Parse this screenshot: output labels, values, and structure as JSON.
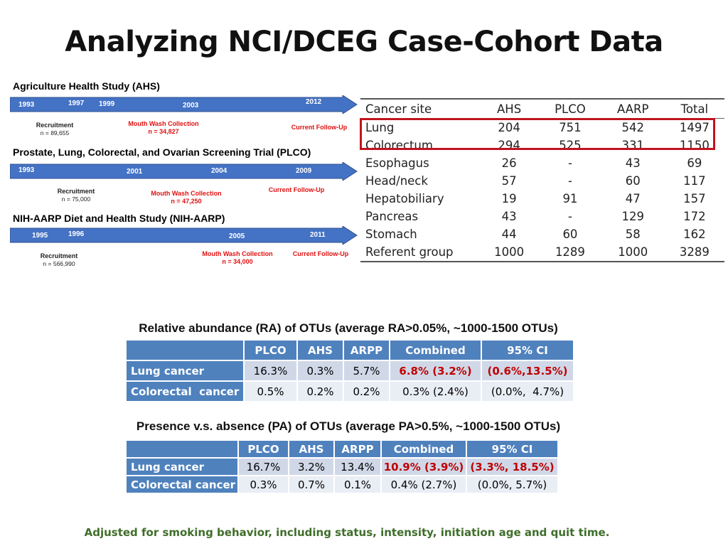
{
  "title": "Analyzing NCI/DCEG Case-Cohort Data",
  "colors": {
    "arrow_blue": "#4472c4",
    "table_header_blue": "#4f81bd",
    "highlight_red": "#c0141e",
    "footnote_green": "#3f6e2a"
  },
  "timelines": [
    {
      "name": "Agriculture Health Study (AHS)",
      "years": [
        "1993",
        "1997",
        "1999",
        "2003",
        "2012"
      ],
      "recruitment_label": "Recruitment",
      "recruitment_n": "n = 89,655",
      "mouthwash_label": "Mouth Wash Collection",
      "mouthwash_n": "n = 34,827",
      "followup_label": "Current Follow-Up"
    },
    {
      "name": "Prostate, Lung, Colorectal, and Ovarian Screening Trial (PLCO)",
      "years": [
        "1993",
        "2001",
        "2004",
        "2009"
      ],
      "recruitment_label": "Recruitment",
      "recruitment_n": "n = 75,000",
      "mouthwash_label": "Mouth Wash Collection",
      "mouthwash_n": "n = 47,250",
      "followup_label": "Current Follow-Up"
    },
    {
      "name": "NIH-AARP Diet and Health Study (NIH-AARP)",
      "years": [
        "1995",
        "1996",
        "2005",
        "2011"
      ],
      "recruitment_label": "Recruitment",
      "recruitment_n": "n = 566,990",
      "mouthwash_label": "Mouth Wash Collection",
      "mouthwash_n": "n = 34,000",
      "followup_label": "Current Follow-Up"
    }
  ],
  "cohort_table": {
    "headers": [
      "Cancer site",
      "AHS",
      "PLCO",
      "AARP",
      "Total"
    ],
    "rows": [
      [
        "Lung",
        "204",
        "751",
        "542",
        "1497"
      ],
      [
        "Colorectum",
        "294",
        "525",
        "331",
        "1150"
      ],
      [
        "Esophagus",
        "26",
        "-",
        "43",
        "69"
      ],
      [
        "Head/neck",
        "57",
        "-",
        "60",
        "117"
      ],
      [
        "Hepatobiliary",
        "19",
        "91",
        "47",
        "157"
      ],
      [
        "Pancreas",
        "43",
        "-",
        "129",
        "172"
      ],
      [
        "Stomach",
        "44",
        "60",
        "58",
        "162"
      ],
      [
        "Referent group",
        "1000",
        "1289",
        "1000",
        "3289"
      ]
    ]
  },
  "ra": {
    "subtitle": "Relative abundance (RA) of OTUs (average RA>0.05%, ~1000-1500 OTUs)",
    "headers": [
      "",
      "PLCO",
      "AHS",
      "ARPP",
      "Combined",
      "95% CI"
    ],
    "rows": [
      [
        "Lung cancer",
        "16.3%",
        "0.3%",
        "5.7%",
        "6.8% (3.2%)",
        "(0.6%,13.5%)"
      ],
      [
        "Colorectal  cancer",
        "0.5%",
        "0.2%",
        "0.2%",
        "0.3% (2.4%)",
        "(0.0%,  4.7%)"
      ]
    ]
  },
  "pa": {
    "subtitle": "Presence v.s. absence (PA) of OTUs (average PA>0.5%, ~1000-1500 OTUs)",
    "headers": [
      "",
      "PLCO",
      "AHS",
      "ARPP",
      "Combined",
      "95% CI"
    ],
    "rows": [
      [
        "Lung cancer",
        "16.7%",
        "3.2%",
        "13.4%",
        "10.9% (3.9%)",
        "(3.3%, 18.5%)"
      ],
      [
        "Colorectal cancer",
        "0.3%",
        "0.7%",
        "0.1%",
        "0.4% (2.7%)",
        "(0.0%, 5.7%)"
      ]
    ]
  },
  "footnote": "Adjusted for smoking behavior, including status, intensity, initiation age and quit time."
}
